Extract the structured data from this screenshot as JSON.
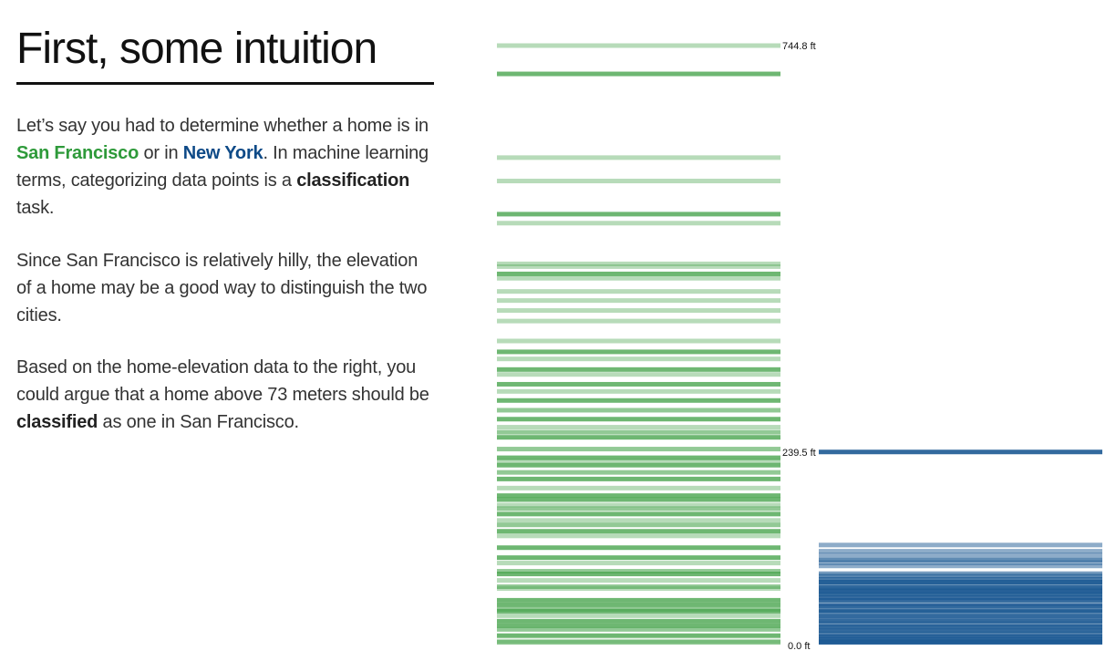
{
  "title": "First, some intuition",
  "paragraphs": {
    "p1": {
      "t1": "Let’s say you had to determine whether a home is in ",
      "sf": "San Francisco",
      "t2": " or in ",
      "ny": "New York",
      "t3": ". In machine learning terms, categorizing data points is a ",
      "cls": "classification",
      "t4": " task."
    },
    "p2": "Since San Francisco is relatively hilly, the elevation of a home may be a good way to distinguish the two cities.",
    "p3": {
      "t1": "Based on the home-elevation data to the right, you could argue that a home above 73 meters should be ",
      "cls": "classified",
      "t2": " as one in San Francisco."
    }
  },
  "chart_data": {
    "type": "strip",
    "y_unit": "ft",
    "ylim": [
      0,
      744.8
    ],
    "tick_labels": {
      "max_sf": "744.8 ft",
      "max_ny": "239.5 ft",
      "zero": "0.0 ft"
    },
    "colors": {
      "sf": "#4aa54f",
      "ny": "#1d5a93"
    },
    "series": [
      {
        "name": "San Francisco",
        "elevations_ft": [
          744.8,
          709.6,
          605.5,
          576.4,
          535.2,
          524.0,
          473.4,
          470.0,
          460.9,
          455.5,
          439.1,
          427.8,
          415.4,
          402.3,
          377.5,
          364.0,
          355.2,
          342.0,
          335.9,
          323.7,
          314.8,
          303.5,
          291.4,
          280.3,
          270.3,
          264.0,
          257.7,
          243.1,
          232.3,
          228.0,
          223.1,
          214.1,
          205.9,
          194.6,
          185.2,
          180.3,
          173.5,
          169.0,
          162.3,
          154.4,
          148.8,
          140.9,
          135.1,
          120.5,
          108.1,
          101.4,
          91.2,
          87.8,
          79.8,
          72.0,
          69.7,
          55.1,
          49.4,
          43.8,
          41.5,
          35.9,
          29.1,
          23.5,
          18.9,
          11.1,
          4.3,
          0.0
        ],
        "shades": [
          0.4,
          0.8,
          0.4,
          0.4,
          0.8,
          0.4,
          0.4,
          0.4,
          0.8,
          0.4,
          0.4,
          0.4,
          0.4,
          0.4,
          0.4,
          0.8,
          0.4,
          0.8,
          0.4,
          0.8,
          0.4,
          0.8,
          0.6,
          0.8,
          0.4,
          0.6,
          0.8,
          0.6,
          0.8,
          0.4,
          0.8,
          0.6,
          0.8,
          0.4,
          0.8,
          0.8,
          0.4,
          0.6,
          0.8,
          0.4,
          0.6,
          0.8,
          0.4,
          0.8,
          0.8,
          0.4,
          0.6,
          0.8,
          0.4,
          0.6,
          0.4,
          0.8,
          0.8,
          0.6,
          0.8,
          0.4,
          0.8,
          0.8,
          0.6,
          0.8,
          0.4,
          0.6
        ]
      },
      {
        "name": "New York",
        "elevations_ft": [
          239.5,
          123.8,
          116.1,
          111.3,
          105.5,
          101.7,
          97.8,
          88.2,
          85.3,
          81.5,
          77.6,
          75.7,
          70.9,
          68.1,
          66.1,
          62.3,
          58.4,
          55.5,
          50.7,
          47.9,
          42.1,
          40.2,
          35.3,
          29.6,
          25.7,
          21.9,
          17.0,
          13.2,
          10.3,
          6.5,
          3.7,
          1.8
        ],
        "shades": [
          0.9,
          0.5,
          0.5,
          0.5,
          0.7,
          0.5,
          0.5,
          0.6,
          0.6,
          0.8,
          0.9,
          0.6,
          0.9,
          0.6,
          0.9,
          0.9,
          0.8,
          0.9,
          0.6,
          0.9,
          0.9,
          0.6,
          0.9,
          0.9,
          0.7,
          0.9,
          0.9,
          0.6,
          0.9,
          0.9,
          0.9,
          0.9
        ]
      }
    ]
  }
}
